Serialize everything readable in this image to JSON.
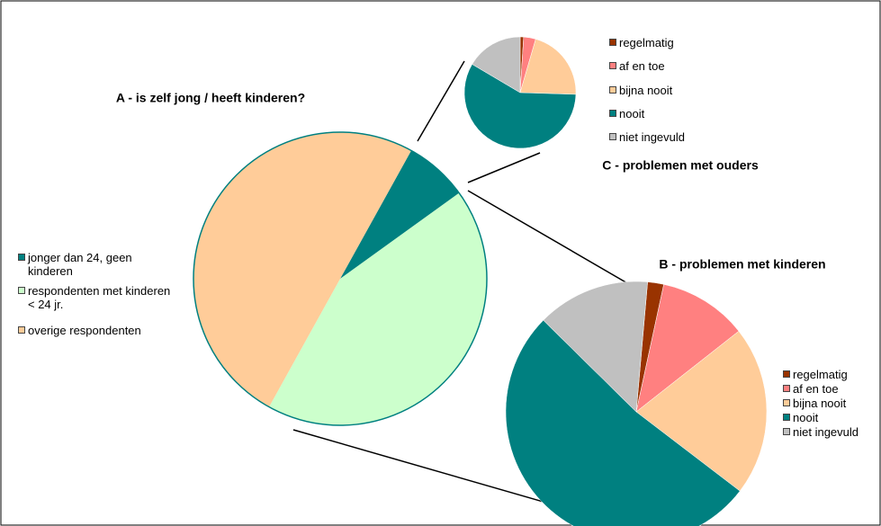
{
  "chart_data": [
    {
      "type": "pie",
      "title": "A - is zelf jong / heeft kinderen?",
      "categories": [
        "jonger dan 24, geen kinderen",
        "respondenten met kinderen < 24 jr.",
        "overige respondenten"
      ],
      "values": [
        7,
        43,
        50
      ],
      "colors": [
        "#008080",
        "#ccffcc",
        "#ffcc99"
      ]
    },
    {
      "type": "pie",
      "title": "B - problemen met kinderen",
      "categories": [
        "regelmatig",
        "af en toe",
        "bijna nooit",
        "nooit",
        "niet ingevuld"
      ],
      "values": [
        2,
        11,
        21,
        52,
        14
      ],
      "colors": [
        "#993300",
        "#ff8080",
        "#ffcc99",
        "#008080",
        "#c0c0c0"
      ]
    },
    {
      "type": "pie",
      "title": "C - problemen met ouders",
      "categories": [
        "regelmatig",
        "af en toe",
        "bijna nooit",
        "nooit",
        "niet ingevuld"
      ],
      "values": [
        1,
        3.5,
        21,
        58,
        16.5
      ],
      "colors": [
        "#993300",
        "#ff8080",
        "#ffcc99",
        "#008080",
        "#c0c0c0"
      ]
    }
  ]
}
